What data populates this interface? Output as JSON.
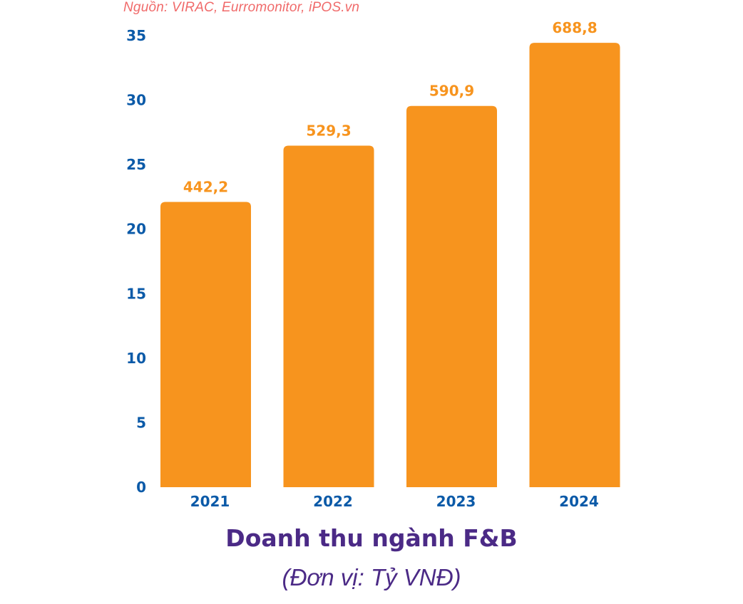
{
  "source": "Nguồn: VIRAC, Eurromonitor, iPOS.vn",
  "chart_data": {
    "type": "bar",
    "title": "Doanh thu ngành F&B",
    "subtitle": "(Đơn vị: Tỷ VNĐ)",
    "categories": [
      "2021",
      "2022",
      "2023",
      "2024"
    ],
    "values": [
      22.11,
      26.47,
      29.55,
      34.44
    ],
    "data_labels": [
      "442,2",
      "529,3",
      "590,9",
      "688,8"
    ],
    "ylim": [
      0,
      35
    ],
    "yticks": [
      "0",
      "5",
      "10",
      "15",
      "20",
      "25",
      "30",
      "35"
    ],
    "grid": false,
    "xlabel": "",
    "ylabel": "",
    "colors": {
      "bar": "#F7941E",
      "data_label": "#F7941E",
      "axis_text": "#0B5AA8",
      "title": "#4B2A86",
      "source": "#F06A6A"
    }
  }
}
